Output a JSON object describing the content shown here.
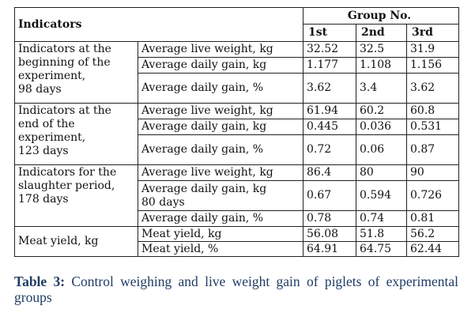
{
  "table": {
    "header": {
      "indicators": "Indicators",
      "group": "Group No.",
      "groups": [
        "1st",
        "2nd",
        "3rd"
      ]
    },
    "sections": [
      {
        "label_lines": [
          "Indicators at the",
          "beginning of the",
          "experiment,",
          "98 days"
        ],
        "rows": [
          {
            "metric_lines": [
              "Average live weight, kg"
            ],
            "values": [
              "32.52",
              "32.5",
              "31.9"
            ]
          },
          {
            "metric_lines": [
              "Average daily gain, kg"
            ],
            "values": [
              "1.177",
              "1.108",
              "1.156"
            ]
          },
          {
            "metric_lines": [
              "Average daily gain, %"
            ],
            "values": [
              "3.62",
              "3.4",
              "3.62"
            ]
          }
        ]
      },
      {
        "label_lines": [
          "Indicators at the",
          "end of the",
          "experiment,",
          "123 days"
        ],
        "rows": [
          {
            "metric_lines": [
              "Average live weight, kg"
            ],
            "values": [
              "61.94",
              "60.2",
              "60.8"
            ]
          },
          {
            "metric_lines": [
              "Average daily gain, kg"
            ],
            "values": [
              "0.445",
              "0.036",
              "0.531"
            ]
          },
          {
            "metric_lines": [
              "Average daily gain, %"
            ],
            "values": [
              "0.72",
              "0.06",
              "0.87"
            ]
          }
        ]
      },
      {
        "label_lines": [
          "Indicators for the",
          "slaughter period,",
          "178 days"
        ],
        "rows": [
          {
            "metric_lines": [
              "Average live weight, kg"
            ],
            "values": [
              "86.4",
              "80",
              "90"
            ]
          },
          {
            "metric_lines": [
              "Average daily gain, kg",
              "80 days"
            ],
            "values": [
              "0.67",
              "0.594",
              "0.726"
            ]
          },
          {
            "metric_lines": [
              "Average daily gain, %"
            ],
            "values": [
              "0.78",
              "0.74",
              "0.81"
            ]
          }
        ]
      },
      {
        "label_lines": [
          "Meat yield, kg"
        ],
        "rows": [
          {
            "metric_lines": [
              "Meat yield, kg"
            ],
            "values": [
              "56.08",
              "51.8",
              "56.2"
            ]
          },
          {
            "metric_lines": [
              "Meat yield, %"
            ],
            "values": [
              "64.91",
              "64.75",
              "62.44"
            ]
          }
        ]
      }
    ]
  },
  "caption": {
    "label": "Table 3:",
    "text": " Control weighing and live weight gain of piglets of experimental groups"
  },
  "colors": {
    "caption": "#1f3c64",
    "border": "#222222",
    "text": "#111111"
  }
}
